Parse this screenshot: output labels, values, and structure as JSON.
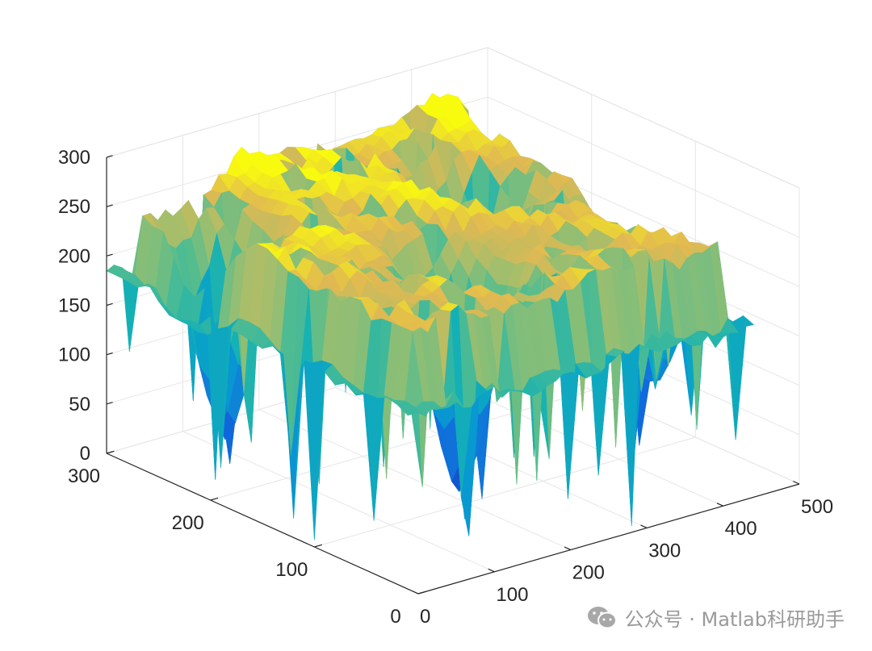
{
  "chart_data": {
    "type": "surface",
    "title": "",
    "xlabel": "",
    "ylabel": "",
    "zlabel": "",
    "xlim": [
      0,
      500
    ],
    "ylim": [
      0,
      300
    ],
    "zlim": [
      0,
      300
    ],
    "x_ticks": [
      0,
      100,
      200,
      300,
      400,
      500
    ],
    "y_ticks": [
      0,
      100,
      200,
      300
    ],
    "z_ticks": [
      0,
      50,
      100,
      150,
      200,
      250,
      300
    ],
    "x_tick_labels": [
      "0",
      "100",
      "200",
      "300",
      "400",
      "500"
    ],
    "y_tick_labels": [
      "0",
      "100",
      "200",
      "300"
    ],
    "z_tick_labels": [
      "0",
      "50",
      "100",
      "150",
      "200",
      "250",
      "300"
    ],
    "grid": true,
    "colormap": "parula",
    "surface_extent": {
      "x": [
        0,
        440
      ],
      "y": [
        0,
        300
      ]
    },
    "plateau_level": 250,
    "valleys": [
      {
        "x": 190,
        "y": 100,
        "depth": 15
      },
      {
        "x": 330,
        "y": 190,
        "depth": 60
      },
      {
        "x": 440,
        "y": 100,
        "depth": 50
      },
      {
        "x": 60,
        "y": 230,
        "depth": 40
      }
    ]
  },
  "watermark": {
    "text": "公众号 · Matlab科研助手",
    "icon": "wechat-icon"
  }
}
